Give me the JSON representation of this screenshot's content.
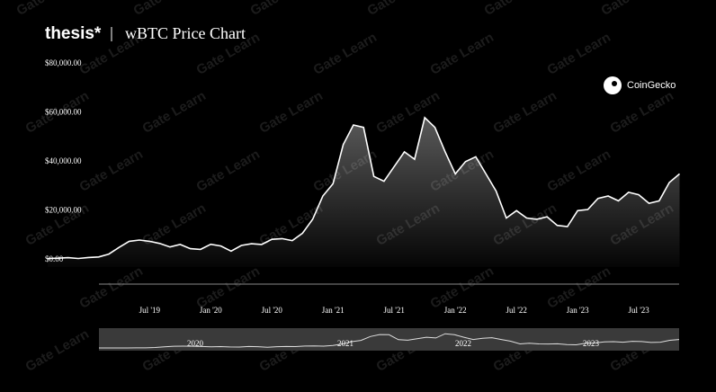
{
  "chart_data": {
    "type": "line",
    "brand": "thesis*",
    "title": "wBTC Price Chart",
    "source": "CoinGecko",
    "watermark": "Gate Learn",
    "categories": [
      null,
      null,
      null,
      null,
      null,
      null,
      null,
      null,
      null,
      null,
      "Jul '19",
      null,
      null,
      null,
      null,
      null,
      "Jan '20",
      null,
      null,
      null,
      null,
      null,
      "Jul '20",
      null,
      null,
      null,
      null,
      null,
      "Jan '21",
      null,
      null,
      null,
      null,
      null,
      "Jul '21",
      null,
      null,
      null,
      null,
      null,
      "Jan '22",
      null,
      null,
      null,
      null,
      null,
      "Jul '22",
      null,
      null,
      null,
      null,
      null,
      "Jan '23",
      null,
      null,
      null,
      null,
      null,
      "Jul '23",
      null,
      null,
      null,
      null
    ],
    "series": [
      {
        "name": "wBTC",
        "color": "#ffffff",
        "values": [
          3500,
          3600,
          3800,
          3500,
          3900,
          4100,
          5300,
          8000,
          10500,
          11000,
          10500,
          9600,
          8200,
          9200,
          7500,
          7200,
          9300,
          8600,
          6500,
          8800,
          9500,
          9200,
          11300,
          11600,
          10800,
          13800,
          19500,
          29000,
          34000,
          50000,
          58000,
          57000,
          37000,
          35000,
          41000,
          47000,
          44000,
          61000,
          57000,
          47000,
          38000,
          43000,
          45000,
          38000,
          31000,
          20000,
          23000,
          20000,
          19500,
          20500,
          17000,
          16500,
          23000,
          23500,
          28000,
          29000,
          27000,
          30500,
          29500,
          26000,
          27000,
          34500,
          38000
        ]
      }
    ],
    "ylim": [
      0,
      80000
    ],
    "yticks": [
      {
        "value": 0,
        "label": "$0.00"
      },
      {
        "value": 20000,
        "label": "$20,000.00"
      },
      {
        "value": 40000,
        "label": "$40,000.00"
      },
      {
        "value": 60000,
        "label": "$60,000.00"
      },
      {
        "value": 80000,
        "label": "$80,000.00"
      }
    ],
    "navigator_labels": [
      "2020",
      "2021",
      "2022",
      "2023"
    ]
  }
}
